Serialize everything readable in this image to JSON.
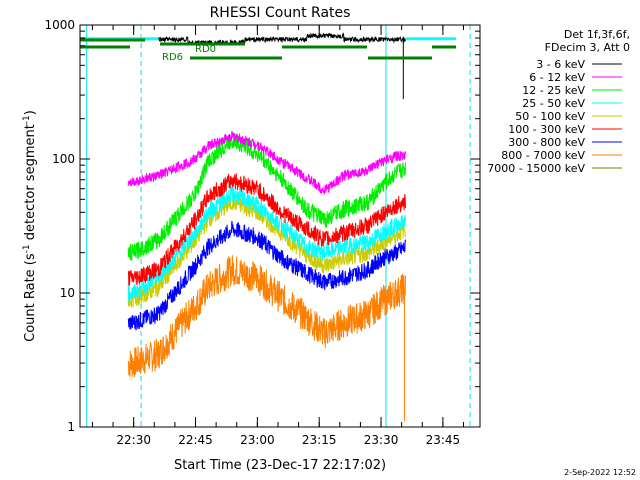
{
  "chart_data": {
    "type": "line",
    "title": "RHESSI Count Rates",
    "xlabel": "Start Time (23-Dec-17 22:17:02)",
    "ylabel_main": "Count Rate (s",
    "ylabel_sup1": "-1",
    "ylabel_mid": " detector segment",
    "ylabel_sup2": "-1",
    "ylabel_end": ")",
    "y_scale": "log",
    "ylim": [
      1,
      1000
    ],
    "xlim_minutes": [
      22.283,
      23.9
    ],
    "x_ticks": [
      {
        "label": "22:30",
        "hour": 22.5
      },
      {
        "label": "22:45",
        "hour": 22.75
      },
      {
        "label": "23:00",
        "hour": 23.0
      },
      {
        "label": "23:15",
        "hour": 23.25
      },
      {
        "label": "23:30",
        "hour": 23.5
      },
      {
        "label": "23:45",
        "hour": 23.75
      }
    ],
    "y_ticks": [
      {
        "label": "1",
        "value": 1
      },
      {
        "label": "10",
        "value": 10
      },
      {
        "label": "100",
        "value": 100
      },
      {
        "label": "1000",
        "value": 1000
      }
    ],
    "legend_header": [
      "Det 1f,3f,6f,",
      "FDecim 3, Att 0"
    ],
    "legend_placement": "right",
    "series": [
      {
        "name": "3 - 6 keV",
        "color": "#000000"
      },
      {
        "name": "6 - 12 keV",
        "color": "#ff00ff"
      },
      {
        "name": "12 - 25 keV",
        "color": "#00ee00"
      },
      {
        "name": "25 - 50 keV",
        "color": "#00ffff"
      },
      {
        "name": "50 - 100 keV",
        "color": "#cccc00"
      },
      {
        "name": "100 - 300 keV",
        "color": "#ff0000"
      },
      {
        "name": "300 - 800 keV",
        "color": "#0000ff"
      },
      {
        "name": "800 - 7000 keV",
        "color": "#ff8000"
      },
      {
        "name": "7000 - 15000 keV",
        "color": "#808000"
      }
    ],
    "profile_hours": [
      22.5,
      22.6,
      22.75,
      22.8,
      22.9,
      23.0,
      23.1,
      23.2,
      23.27,
      23.35,
      23.45,
      23.5,
      23.56,
      23.6
    ],
    "series_profiles": {
      "6 - 12 keV": [
        68,
        75,
        100,
        125,
        148,
        128,
        95,
        72,
        58,
        75,
        82,
        95,
        105,
        105
      ],
      "12 - 25 keV": [
        20,
        25,
        55,
        95,
        140,
        110,
        70,
        42,
        35,
        42,
        48,
        62,
        78,
        85
      ],
      "25 - 50 keV": [
        10,
        13,
        28,
        40,
        55,
        45,
        32,
        22,
        20,
        22,
        24,
        28,
        32,
        34
      ],
      "50 - 100 keV": [
        9,
        11,
        25,
        35,
        48,
        40,
        28,
        19,
        16,
        18,
        20,
        23,
        27,
        30
      ],
      "100 - 300 keV": [
        13,
        15,
        35,
        52,
        70,
        60,
        40,
        30,
        25,
        28,
        32,
        38,
        45,
        48
      ],
      "300 - 800 keV": [
        6,
        7,
        16,
        22,
        30,
        26,
        18,
        14,
        12,
        13,
        15,
        18,
        20,
        22
      ],
      "800 - 7000 keV": [
        3,
        3.5,
        8,
        11,
        15,
        13,
        9,
        6.5,
        5,
        6,
        7,
        8.5,
        10,
        11
      ]
    },
    "series_3_6_level": 780,
    "markers": {
      "rd_labels": [
        "RD0",
        "RD6"
      ],
      "vertical_lines_hours": [
        22.31,
        22.53,
        23.52,
        23.86
      ]
    },
    "footer_date": "2-Sep-2022 12:52"
  }
}
